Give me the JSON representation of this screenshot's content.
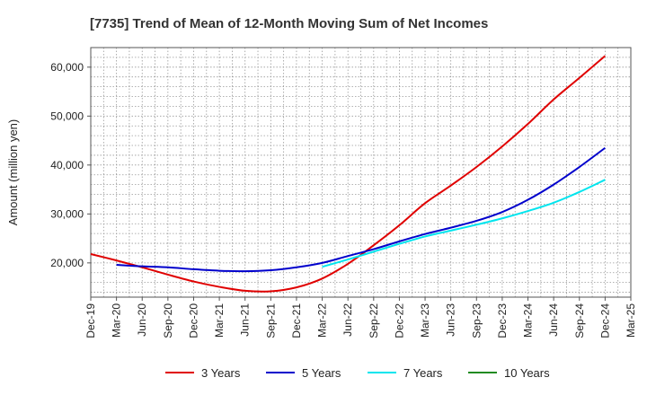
{
  "chart_data": {
    "type": "line",
    "title": "[7735]  Trend of Mean of 12-Month Moving Sum of Net Incomes",
    "ylabel": "Amount (million yen)",
    "xlabel": "",
    "ylim": [
      13000,
      64000
    ],
    "yticks": [
      20000,
      30000,
      40000,
      50000,
      60000
    ],
    "ytick_labels": [
      "20,000",
      "30,000",
      "40,000",
      "50,000",
      "60,000"
    ],
    "x_tick_labels": [
      "Dec-19",
      "Mar-20",
      "Jun-20",
      "Sep-20",
      "Dec-20",
      "Mar-21",
      "Jun-21",
      "Sep-21",
      "Dec-21",
      "Mar-22",
      "Jun-22",
      "Sep-22",
      "Dec-22",
      "Mar-23",
      "Jun-23",
      "Sep-23",
      "Dec-23",
      "Mar-24",
      "Jun-24",
      "Sep-24",
      "Dec-24",
      "Mar-25"
    ],
    "grid": true,
    "legend_position": "bottom",
    "series": [
      {
        "name": "3 Years",
        "color": "#e00000",
        "x": [
          "Dec-19",
          "Mar-20",
          "Jun-20",
          "Sep-20",
          "Dec-20",
          "Mar-21",
          "Jun-21",
          "Sep-21",
          "Dec-21",
          "Mar-22",
          "Jun-22",
          "Sep-22",
          "Dec-22",
          "Mar-23",
          "Jun-23",
          "Sep-23",
          "Dec-23",
          "Mar-24",
          "Jun-24",
          "Sep-24",
          "Dec-24"
        ],
        "values": [
          21800,
          20500,
          19100,
          17600,
          16200,
          15100,
          14300,
          14200,
          15000,
          16800,
          19800,
          23600,
          27700,
          32200,
          35800,
          39600,
          43800,
          48400,
          53400,
          57800,
          62300
        ]
      },
      {
        "name": "5 Years",
        "color": "#0000cc",
        "x": [
          "Mar-20",
          "Jun-20",
          "Sep-20",
          "Dec-20",
          "Mar-21",
          "Jun-21",
          "Sep-21",
          "Dec-21",
          "Mar-22",
          "Jun-22",
          "Sep-22",
          "Dec-22",
          "Mar-23",
          "Jun-23",
          "Sep-23",
          "Dec-23",
          "Mar-24",
          "Jun-24",
          "Sep-24",
          "Dec-24"
        ],
        "values": [
          19600,
          19300,
          19100,
          18700,
          18400,
          18300,
          18500,
          19100,
          20000,
          21400,
          22800,
          24400,
          25900,
          27200,
          28600,
          30400,
          32900,
          36000,
          39600,
          43500
        ]
      },
      {
        "name": "7 Years",
        "color": "#00e5ee",
        "x": [
          "Mar-22",
          "Jun-22",
          "Sep-22",
          "Dec-22",
          "Mar-23",
          "Jun-23",
          "Sep-23",
          "Dec-23",
          "Mar-24",
          "Jun-24",
          "Sep-24",
          "Dec-24"
        ],
        "values": [
          19200,
          20700,
          22300,
          23900,
          25400,
          26600,
          27800,
          29100,
          30600,
          32300,
          34500,
          37000
        ]
      },
      {
        "name": "10 Years",
        "color": "#228b22",
        "x": [],
        "values": []
      }
    ]
  }
}
